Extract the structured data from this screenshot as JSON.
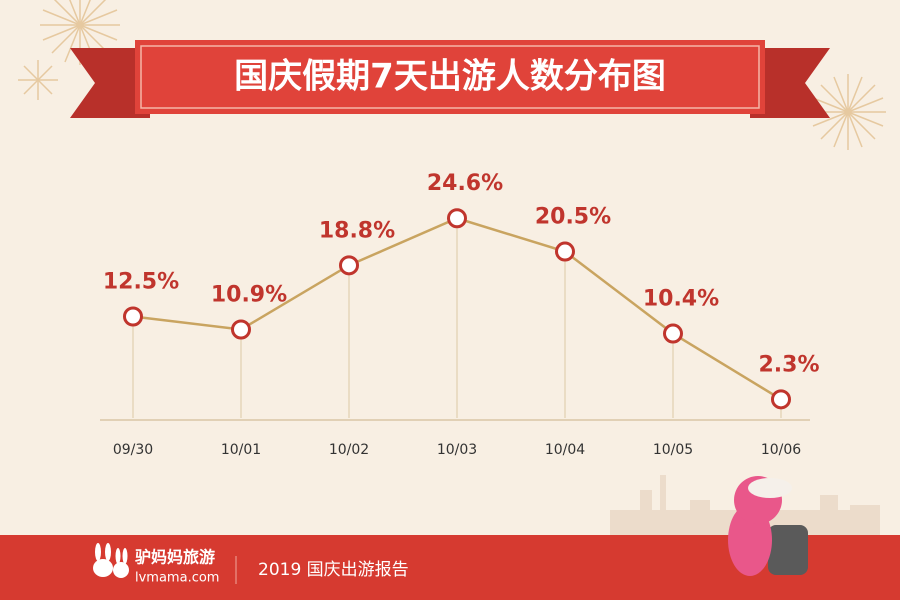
{
  "chart_data": {
    "type": "line",
    "title": "国庆假期7天出游人数分布图",
    "categories": [
      "09/30",
      "10/01",
      "10/02",
      "10/03",
      "10/04",
      "10/05",
      "10/06"
    ],
    "values": [
      12.5,
      10.9,
      18.8,
      24.6,
      20.5,
      10.4,
      2.3
    ],
    "value_labels": [
      "12.5%",
      "10.9%",
      "18.8%",
      "24.6%",
      "20.5%",
      "10.4%",
      "2.3%"
    ],
    "color": "#c9a460",
    "marker_color": "#c0352d",
    "label_color": "#c0352d"
  },
  "footer": {
    "brand": "驴妈妈旅游",
    "domain": "lvmama.com",
    "report": "2019 国庆出游报告"
  }
}
